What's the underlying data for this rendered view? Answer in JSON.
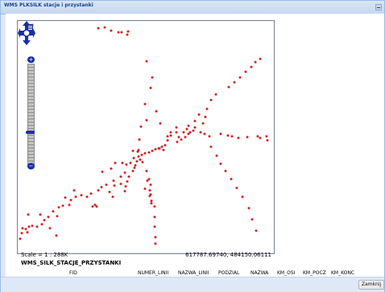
{
  "window": {
    "title": "WMS PLKSILK stacje i przystanki"
  },
  "map": {
    "scale_text": "Scale = 1 : 288K",
    "coords_text": "617787.69740, 484150.06111",
    "zoom_in_label": "+",
    "zoom_out_label": "−",
    "point_color": "#d42020"
  },
  "layer": {
    "title": "WMS_SILK_STACJE_PRZYSTANKI"
  },
  "table": {
    "columns": [
      "FID",
      "NUMER_LINII",
      "NAZWA_LINII",
      "PODZIAL",
      "NAZWA",
      "KM_OSI",
      "KM_POCZ",
      "KM_KONC"
    ]
  },
  "footer": {
    "close_label": "Zamknij"
  }
}
